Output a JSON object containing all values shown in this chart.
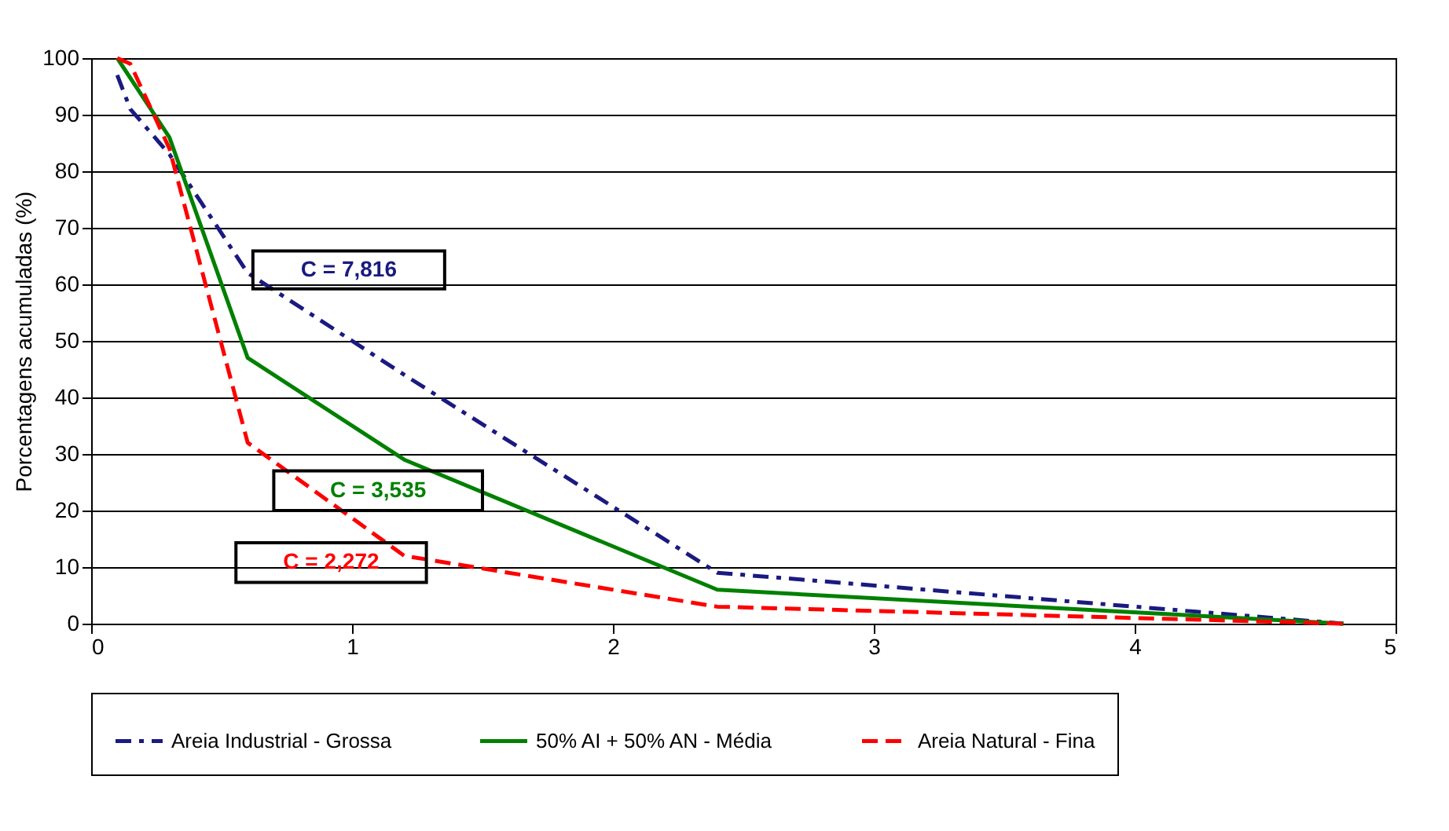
{
  "chart_data": {
    "type": "line",
    "ylabel": "Porcentagens acumuladas (%)",
    "xlim": [
      0,
      5
    ],
    "xticks": [
      0,
      1,
      2,
      3,
      4,
      5
    ],
    "ylim": [
      0,
      100
    ],
    "yticks": [
      0,
      10,
      20,
      30,
      40,
      50,
      60,
      70,
      80,
      90,
      100
    ],
    "grid": "y",
    "legend": "bottom",
    "marker": "none",
    "series": [
      {
        "name": "Areia Industrial - Grossa",
        "color": "#1a1a80",
        "line_style": "dashdot",
        "x": [
          0.1,
          0.15,
          0.3,
          0.6,
          1.2,
          2.4,
          4.8
        ],
        "values": [
          97,
          91,
          83,
          62,
          44,
          9,
          0
        ]
      },
      {
        "name": "50% AI + 50% AN - Média",
        "color": "#008000",
        "line_style": "solid",
        "x": [
          0.1,
          0.3,
          0.6,
          1.2,
          2.4,
          4.8
        ],
        "values": [
          100,
          86,
          47,
          29,
          6,
          0
        ]
      },
      {
        "name": "Areia Natural - Fina",
        "color": "#ff0000",
        "line_style": "dashed",
        "x": [
          0.1,
          0.15,
          0.3,
          0.6,
          1.2,
          2.4,
          4.8
        ],
        "values": [
          100,
          99,
          84,
          32,
          12,
          3,
          0
        ]
      }
    ],
    "annotations": [
      "C = 7,816",
      "C  = 3,535",
      "C = 2,272"
    ]
  }
}
